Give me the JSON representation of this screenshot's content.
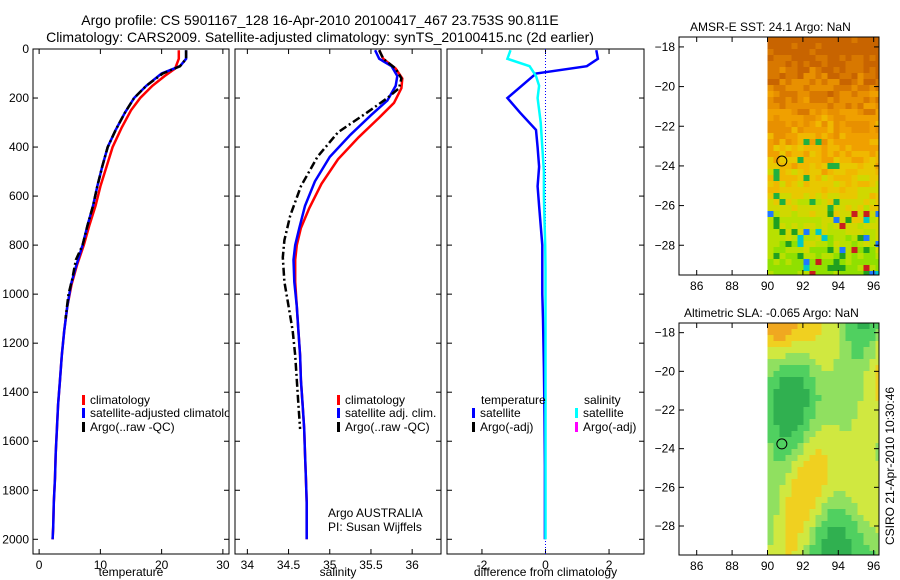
{
  "header": {
    "line1": "Argo profile: CS 5901167_128 16-Apr-2010 20100417_467 23.753S 90.811E",
    "line2": "Climatology: CARS2009. Satellite-adjusted climatology: synTS_20100415.nc (2d earlier)"
  },
  "colors": {
    "climatology": "#ff0000",
    "satellite": "#0000ff",
    "argo": "#000000",
    "sal_satellite": "#00ffff",
    "sal_argo": "#ff00ff"
  },
  "chart_data": [
    {
      "type": "line",
      "id": "temperature",
      "xlabel": "temperature",
      "xlim": [
        -1,
        31
      ],
      "ylim": [
        0,
        2060
      ],
      "xticks": [
        0,
        10,
        20,
        30
      ],
      "yticks": [
        0,
        200,
        400,
        600,
        800,
        1000,
        1200,
        1400,
        1600,
        1800,
        2000
      ],
      "legend": [
        "climatology",
        "satellite-adjusted climatology",
        "Argo(..raw -QC)"
      ],
      "series": [
        {
          "name": "climatology",
          "color": "#ff0000",
          "dash": "",
          "points": [
            [
              22.8,
              5
            ],
            [
              22.8,
              40
            ],
            [
              22.2,
              80
            ],
            [
              20.5,
              110
            ],
            [
              18.5,
              150
            ],
            [
              16.5,
              200
            ],
            [
              15,
              250
            ],
            [
              13.5,
              320
            ],
            [
              12,
              400
            ],
            [
              11,
              480
            ],
            [
              10,
              560
            ],
            [
              9.2,
              640
            ],
            [
              8.2,
              720
            ],
            [
              7.3,
              800
            ],
            [
              6.2,
              880
            ],
            [
              5.3,
              960
            ],
            [
              4.6,
              1050
            ],
            [
              4.1,
              1150
            ],
            [
              3.7,
              1250
            ],
            [
              3.4,
              1350
            ],
            [
              3.1,
              1450
            ],
            [
              2.9,
              1550
            ],
            [
              2.7,
              1650
            ],
            [
              2.6,
              1750
            ],
            [
              2.4,
              1850
            ],
            [
              2.3,
              1950
            ],
            [
              2.2,
              2000
            ]
          ]
        },
        {
          "name": "satellite-adjusted climatology",
          "color": "#0000ff",
          "dash": "",
          "points": [
            [
              24,
              5
            ],
            [
              24,
              40
            ],
            [
              23,
              70
            ],
            [
              20,
              100
            ],
            [
              17.5,
              150
            ],
            [
              15.5,
              200
            ],
            [
              14,
              260
            ],
            [
              12.5,
              330
            ],
            [
              11.2,
              400
            ],
            [
              10.3,
              480
            ],
            [
              9.5,
              560
            ],
            [
              8.8,
              640
            ],
            [
              7.9,
              720
            ],
            [
              7.1,
              800
            ],
            [
              6.1,
              880
            ],
            [
              5.2,
              960
            ],
            [
              4.6,
              1050
            ],
            [
              4.1,
              1150
            ],
            [
              3.7,
              1250
            ],
            [
              3.4,
              1350
            ],
            [
              3.1,
              1450
            ],
            [
              2.9,
              1550
            ],
            [
              2.7,
              1650
            ],
            [
              2.6,
              1750
            ],
            [
              2.4,
              1850
            ],
            [
              2.3,
              1950
            ],
            [
              2.2,
              2000
            ]
          ]
        },
        {
          "name": "Argo(..raw -QC)",
          "color": "#000000",
          "dash": "8,3,2,3",
          "points": [
            [
              24,
              5
            ],
            [
              24,
              40
            ],
            [
              23,
              70
            ],
            [
              20.2,
              100
            ],
            [
              17.5,
              150
            ],
            [
              15.5,
              200
            ],
            [
              14,
              260
            ],
            [
              12.5,
              330
            ],
            [
              11.2,
              400
            ],
            [
              10.3,
              480
            ],
            [
              9.5,
              560
            ],
            [
              8.8,
              640
            ],
            [
              7.9,
              720
            ],
            [
              7.1,
              800
            ],
            [
              6,
              860
            ],
            [
              5.4,
              940
            ],
            [
              4.8,
              1000
            ],
            [
              4.3,
              1100
            ]
          ]
        }
      ]
    },
    {
      "type": "line",
      "id": "salinity",
      "xlabel": "salinity",
      "xlim": [
        33.85,
        36.35
      ],
      "ylim": [
        0,
        2060
      ],
      "xticks": [
        34,
        34.5,
        35,
        35.5,
        36
      ],
      "legend": [
        "climatology",
        "satellite adj. clim.",
        "Argo(..raw -QC)"
      ],
      "annotations": [
        "Argo AUSTRALIA",
        "PI: Susan Wijffels"
      ],
      "series": [
        {
          "name": "climatology",
          "color": "#ff0000",
          "dash": "",
          "points": [
            [
              35.6,
              5
            ],
            [
              35.65,
              40
            ],
            [
              35.8,
              80
            ],
            [
              35.88,
              120
            ],
            [
              35.87,
              160
            ],
            [
              35.78,
              220
            ],
            [
              35.6,
              280
            ],
            [
              35.35,
              360
            ],
            [
              35.1,
              450
            ],
            [
              34.9,
              550
            ],
            [
              34.75,
              650
            ],
            [
              34.65,
              730
            ],
            [
              34.6,
              800
            ],
            [
              34.58,
              860
            ],
            [
              34.58,
              950
            ],
            [
              34.6,
              1050
            ],
            [
              34.62,
              1150
            ],
            [
              34.64,
              1250
            ],
            [
              34.65,
              1350
            ],
            [
              34.67,
              1450
            ],
            [
              34.69,
              1550
            ],
            [
              34.7,
              1650
            ],
            [
              34.71,
              1750
            ],
            [
              34.72,
              1850
            ],
            [
              34.72,
              1950
            ],
            [
              34.72,
              2000
            ]
          ]
        },
        {
          "name": "satellite adj. clim.",
          "color": "#0000ff",
          "dash": "",
          "points": [
            [
              35.55,
              5
            ],
            [
              35.6,
              40
            ],
            [
              35.75,
              70
            ],
            [
              35.82,
              110
            ],
            [
              35.8,
              150
            ],
            [
              35.7,
              210
            ],
            [
              35.5,
              270
            ],
            [
              35.25,
              350
            ],
            [
              35.0,
              440
            ],
            [
              34.82,
              540
            ],
            [
              34.7,
              640
            ],
            [
              34.63,
              730
            ],
            [
              34.58,
              800
            ],
            [
              34.56,
              860
            ],
            [
              34.57,
              950
            ],
            [
              34.6,
              1050
            ],
            [
              34.62,
              1150
            ],
            [
              34.64,
              1250
            ],
            [
              34.65,
              1350
            ],
            [
              34.67,
              1450
            ],
            [
              34.69,
              1550
            ],
            [
              34.7,
              1650
            ],
            [
              34.71,
              1750
            ],
            [
              34.72,
              1850
            ],
            [
              34.72,
              1950
            ],
            [
              34.72,
              2000
            ]
          ]
        },
        {
          "name": "Argo(..raw -QC)",
          "color": "#000000",
          "dash": "8,3,2,3",
          "points": [
            [
              35.6,
              5
            ],
            [
              35.65,
              40
            ],
            [
              35.8,
              80
            ],
            [
              35.87,
              120
            ],
            [
              35.84,
              160
            ],
            [
              35.7,
              200
            ],
            [
              35.45,
              260
            ],
            [
              35.1,
              340
            ],
            [
              34.85,
              440
            ],
            [
              34.65,
              560
            ],
            [
              34.52,
              680
            ],
            [
              34.45,
              780
            ],
            [
              34.43,
              850
            ],
            [
              34.45,
              950
            ],
            [
              34.5,
              1050
            ],
            [
              34.55,
              1150
            ],
            [
              34.58,
              1250
            ],
            [
              34.6,
              1350
            ],
            [
              34.62,
              1450
            ],
            [
              34.64,
              1550
            ]
          ]
        }
      ]
    },
    {
      "type": "line",
      "id": "difference",
      "xlabel": "difference from climatology",
      "xlim": [
        -3.1,
        3.1
      ],
      "ylim": [
        0,
        2060
      ],
      "xticks": [
        -2,
        0,
        2
      ],
      "legend": {
        "temperature": [
          "satellite",
          "Argo(-adj)"
        ],
        "salinity": [
          "satellite",
          "Argo(-adj)"
        ],
        "headers": [
          "temperature",
          "salinity"
        ]
      },
      "series": [
        {
          "name": "temperature satellite",
          "color": "#0000ff",
          "dash": "",
          "points": [
            [
              1.6,
              5
            ],
            [
              1.65,
              40
            ],
            [
              1.3,
              70
            ],
            [
              -0.3,
              100
            ],
            [
              -1.2,
              200
            ],
            [
              -0.8,
              260
            ],
            [
              -0.3,
              330
            ],
            [
              -0.25,
              400
            ],
            [
              -0.2,
              480
            ],
            [
              -0.25,
              560
            ],
            [
              -0.2,
              640
            ],
            [
              -0.15,
              720
            ],
            [
              -0.1,
              800
            ],
            [
              -0.1,
              880
            ],
            [
              -0.1,
              1000
            ],
            [
              -0.08,
              1100
            ],
            [
              -0.05,
              1300
            ],
            [
              -0.03,
              1500
            ],
            [
              -0.02,
              1700
            ],
            [
              -0.02,
              2000
            ]
          ]
        },
        {
          "name": "salinity satellite",
          "color": "#00ffff",
          "dash": "",
          "points": [
            [
              -1.1,
              5
            ],
            [
              -1.2,
              40
            ],
            [
              -0.5,
              70
            ],
            [
              -0.3,
              110
            ],
            [
              -0.2,
              150
            ],
            [
              -0.25,
              200
            ],
            [
              -0.15,
              300
            ],
            [
              -0.1,
              400
            ],
            [
              -0.05,
              500
            ],
            [
              -0.05,
              600
            ],
            [
              -0.03,
              700
            ],
            [
              -0.01,
              800
            ],
            [
              0,
              900
            ],
            [
              0,
              1000
            ],
            [
              0,
              1200
            ],
            [
              0,
              1400
            ],
            [
              0,
              1600
            ],
            [
              0,
              1800
            ],
            [
              0,
              2000
            ]
          ]
        }
      ]
    },
    {
      "type": "heatmap",
      "id": "sst",
      "title": "AMSR-E SST: 24.1 Argo: NaN",
      "xlim": [
        85,
        96.3
      ],
      "ylim": [
        -29.5,
        -17.5
      ],
      "xticks": [
        86,
        88,
        90,
        92,
        94,
        96
      ],
      "yticks": [
        -18,
        -20,
        -22,
        -24,
        -26,
        -28
      ],
      "marker": [
        90.811,
        -23.753
      ]
    },
    {
      "type": "heatmap",
      "id": "sla",
      "title": "Altimetric SLA: -0.065 Argo: NaN",
      "xlim": [
        85,
        96.3
      ],
      "ylim": [
        -29.5,
        -17.5
      ],
      "xticks": [
        86,
        88,
        90,
        92,
        94,
        96
      ],
      "yticks": [
        -18,
        -20,
        -22,
        -24,
        -26,
        -28
      ],
      "marker": [
        90.811,
        -23.753
      ]
    }
  ],
  "footer": {
    "stamp": "CSIRO 21-Apr-2010 10:30:46"
  }
}
